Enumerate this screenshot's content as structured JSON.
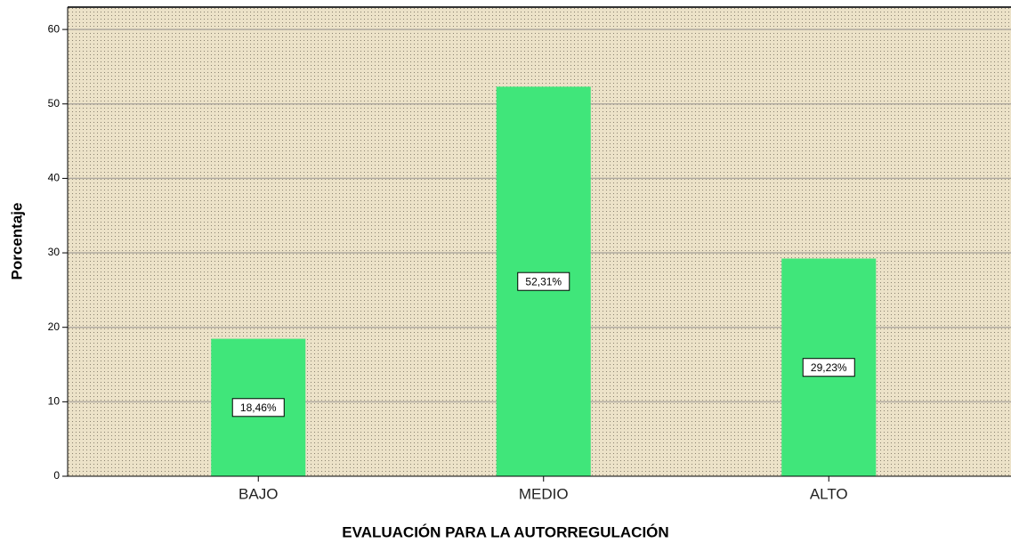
{
  "chart_data": {
    "type": "bar",
    "x_label": "EVALUACIÓN PARA LA AUTORREGULACIÓN",
    "y_label": "Porcentaje",
    "categories": [
      "BAJO",
      "MEDIO",
      "ALTO"
    ],
    "values": [
      18.46,
      52.31,
      29.23
    ],
    "value_labels": [
      "18,46%",
      "52,31%",
      "29,23%"
    ],
    "color": "#40e67a",
    "ylim": [
      0,
      63
    ],
    "yticks": [
      0,
      10,
      20,
      30,
      40,
      50,
      60
    ],
    "grid": true
  }
}
